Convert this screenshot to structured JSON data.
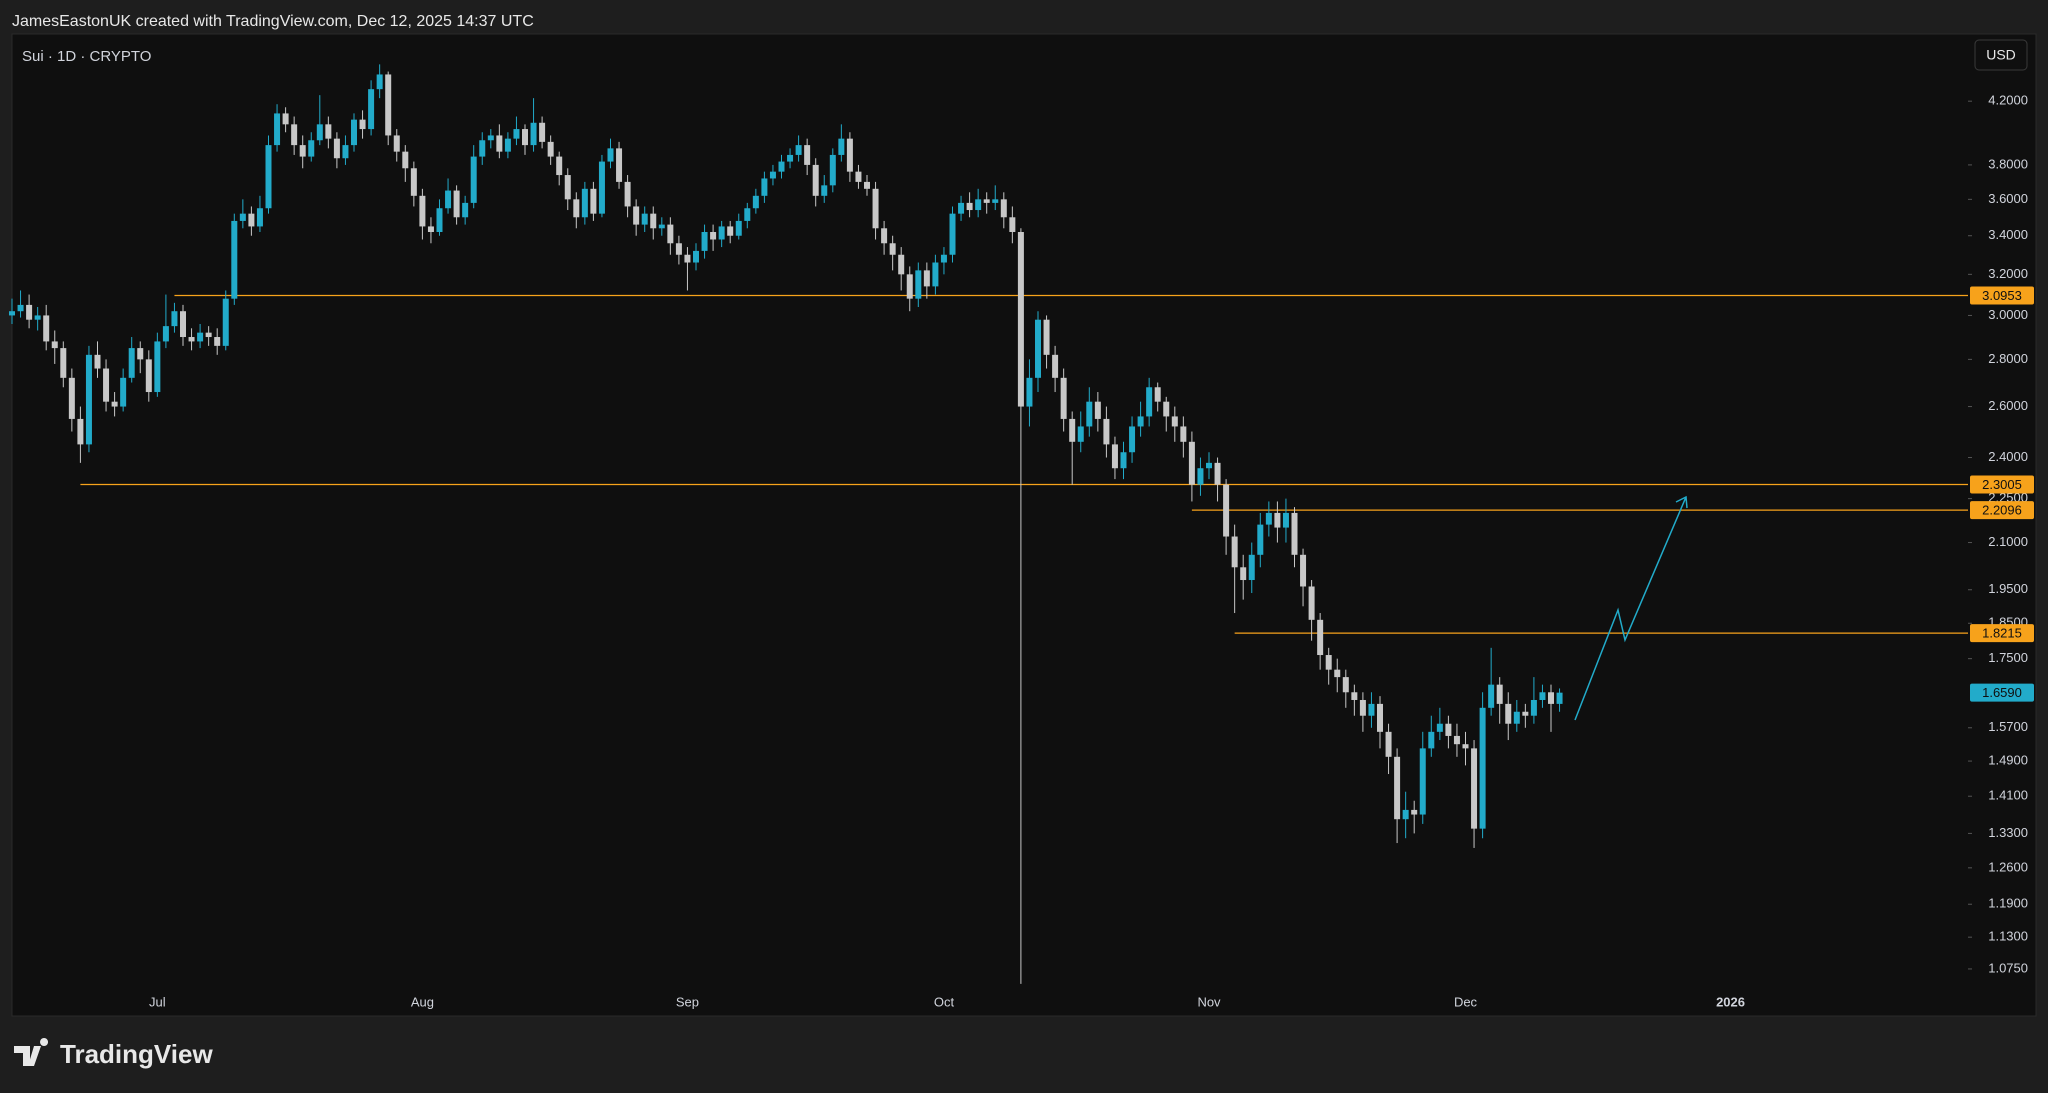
{
  "header": {
    "attribution": "JamesEastonUK created with TradingView.com, Dec 12, 2025 14:37 UTC"
  },
  "chart_data": {
    "type": "candlestick",
    "title": "Sui · 1D · CRYPTO",
    "currency": "USD",
    "log_scale": true,
    "up_color": "#22abca",
    "down_color": "#c8c8c8",
    "level_color": "#f7a21b",
    "ylim": [
      1.0,
      4.66
    ],
    "yticks": [
      {
        "value": 1.075,
        "label": "1.0750"
      },
      {
        "value": 1.13,
        "label": "1.1300"
      },
      {
        "value": 1.19,
        "label": "1.1900"
      },
      {
        "value": 1.26,
        "label": "1.2600"
      },
      {
        "value": 1.33,
        "label": "1.3300"
      },
      {
        "value": 1.41,
        "label": "1.4100"
      },
      {
        "value": 1.49,
        "label": "1.4900"
      },
      {
        "value": 1.57,
        "label": "1.5700"
      },
      {
        "value": 1.75,
        "label": "1.7500"
      },
      {
        "value": 1.85,
        "label": "1.8500"
      },
      {
        "value": 1.95,
        "label": "1.9500"
      },
      {
        "value": 2.1,
        "label": "2.1000"
      },
      {
        "value": 2.25,
        "label": "2.2500"
      },
      {
        "value": 2.4,
        "label": "2.4000"
      },
      {
        "value": 2.6,
        "label": "2.6000"
      },
      {
        "value": 2.8,
        "label": "2.8000"
      },
      {
        "value": 3,
        "label": "3.0000"
      },
      {
        "value": 3.2,
        "label": "3.2000"
      },
      {
        "value": 3.4,
        "label": "3.4000"
      },
      {
        "value": 3.6,
        "label": "3.6000"
      },
      {
        "value": 3.8,
        "label": "3.8000"
      },
      {
        "value": 4.2,
        "label": "4.2000"
      }
    ],
    "levels": [
      3.0953,
      2.3005,
      2.2096,
      1.8215
    ],
    "last_price": {
      "value": 1.659,
      "label": "1.6590"
    },
    "categories": [
      null,
      null,
      null,
      null,
      null,
      null,
      null,
      null,
      null,
      null,
      null,
      null,
      null,
      null,
      null,
      null,
      null,
      "Jul",
      null,
      null,
      null,
      null,
      null,
      null,
      null,
      null,
      null,
      null,
      null,
      null,
      null,
      null,
      null,
      null,
      null,
      null,
      null,
      null,
      null,
      null,
      null,
      null,
      null,
      null,
      null,
      null,
      null,
      null,
      "Aug",
      null,
      null,
      null,
      null,
      null,
      null,
      null,
      null,
      null,
      null,
      null,
      null,
      null,
      null,
      null,
      null,
      null,
      null,
      null,
      null,
      null,
      null,
      null,
      null,
      null,
      null,
      null,
      null,
      null,
      null,
      "Sep",
      null,
      null,
      null,
      null,
      null,
      null,
      null,
      null,
      null,
      null,
      null,
      null,
      null,
      null,
      null,
      null,
      null,
      null,
      null,
      null,
      null,
      null,
      null,
      null,
      null,
      null,
      null,
      null,
      null,
      "Oct",
      null,
      null,
      null,
      null,
      null,
      null,
      null,
      null,
      null,
      null,
      null,
      null,
      null,
      null,
      null,
      null,
      null,
      null,
      null,
      null,
      null,
      null,
      null,
      null,
      null,
      null,
      null,
      null,
      null,
      null,
      "Nov",
      null,
      null,
      null,
      null,
      null,
      null,
      null,
      null,
      null,
      null,
      null,
      null,
      null,
      null,
      null,
      null,
      null,
      null,
      null,
      null,
      null,
      null,
      null,
      null,
      null,
      null,
      null,
      null,
      null,
      "Dec",
      null,
      null,
      null,
      null,
      null,
      null,
      null,
      null,
      null,
      null,
      null,
      null,
      null,
      null,
      null,
      null,
      null,
      null,
      null,
      null,
      null,
      null,
      null,
      null,
      null,
      null,
      null,
      null,
      null,
      null,
      "2026"
    ],
    "open": [
      3.0,
      3.02,
      3.05,
      2.98,
      3.0,
      2.88,
      2.85,
      2.72,
      2.55,
      2.45,
      2.82,
      2.76,
      2.62,
      2.6,
      2.72,
      2.85,
      2.8,
      2.66,
      2.88,
      2.95,
      3.02,
      2.9,
      2.88,
      2.92,
      2.9,
      2.86,
      3.08,
      3.48,
      3.52,
      3.45,
      3.55,
      3.92,
      4.12,
      4.05,
      3.92,
      3.85,
      3.95,
      4.05,
      3.96,
      3.84,
      3.92,
      4.08,
      4.02,
      4.28,
      4.38,
      3.98,
      3.88,
      3.78,
      3.62,
      3.45,
      3.42,
      3.55,
      3.65,
      3.5,
      3.58,
      3.85,
      3.95,
      3.98,
      3.88,
      3.96,
      4.02,
      3.92,
      4.06,
      3.94,
      3.85,
      3.74,
      3.6,
      3.5,
      3.66,
      3.52,
      3.82,
      3.9,
      3.7,
      3.56,
      3.46,
      3.52,
      3.44,
      3.46,
      3.36,
      3.3,
      3.26,
      3.32,
      3.42,
      3.38,
      3.45,
      3.4,
      3.48,
      3.55,
      3.62,
      3.72,
      3.76,
      3.82,
      3.86,
      3.92,
      3.8,
      3.62,
      3.68,
      3.86,
      3.96,
      3.76,
      3.7,
      3.66,
      3.44,
      3.36,
      3.3,
      3.2,
      3.08,
      3.22,
      3.14,
      3.26,
      3.3,
      3.52,
      3.58,
      3.54,
      3.6,
      3.58,
      3.6,
      3.5,
      3.42,
      2.6,
      2.72,
      2.98,
      2.82,
      2.72,
      2.55,
      2.46,
      2.52,
      2.62,
      2.55,
      2.45,
      2.36,
      2.42,
      2.52,
      2.56,
      2.68,
      2.62,
      2.56,
      2.52,
      2.46,
      2.3,
      2.36,
      2.38,
      2.3,
      2.12,
      2.02,
      1.98,
      2.06,
      2.16,
      2.2,
      2.15,
      2.2,
      2.06,
      1.96,
      1.86,
      1.76,
      1.72,
      1.7,
      1.66,
      1.64,
      1.6,
      1.63,
      1.56,
      1.5,
      1.36,
      1.38,
      1.37,
      1.52,
      1.56,
      1.58,
      1.55,
      1.53,
      1.52,
      1.34,
      1.62,
      1.68,
      1.63,
      1.58,
      1.61,
      1.6,
      1.64,
      1.66,
      1.63,
      null,
      null,
      null,
      null,
      null,
      null,
      null,
      null,
      null,
      null,
      null,
      null,
      null,
      null,
      null,
      null,
      null,
      null,
      null,
      null
    ],
    "high": [
      3.08,
      3.12,
      3.1,
      3.04,
      3.05,
      2.93,
      2.88,
      2.76,
      2.6,
      2.86,
      2.88,
      2.8,
      2.66,
      2.76,
      2.9,
      2.88,
      2.84,
      2.92,
      3.1,
      3.06,
      3.05,
      2.94,
      2.96,
      2.95,
      2.94,
      3.12,
      3.52,
      3.6,
      3.56,
      3.62,
      3.98,
      4.18,
      4.16,
      4.1,
      3.98,
      4.0,
      4.24,
      4.1,
      4.0,
      3.98,
      4.12,
      4.14,
      4.34,
      4.45,
      4.4,
      4.02,
      3.92,
      3.82,
      3.66,
      3.5,
      3.6,
      3.72,
      3.68,
      3.62,
      3.92,
      4.0,
      4.02,
      4.05,
      4.0,
      4.1,
      4.05,
      4.22,
      4.1,
      3.98,
      3.88,
      3.78,
      3.64,
      3.7,
      3.7,
      3.86,
      3.96,
      3.94,
      3.74,
      3.6,
      3.56,
      3.56,
      3.5,
      3.5,
      3.4,
      3.34,
      3.36,
      3.46,
      3.46,
      3.48,
      3.48,
      3.52,
      3.58,
      3.66,
      3.76,
      3.8,
      3.86,
      3.9,
      3.98,
      3.96,
      3.84,
      3.74,
      3.9,
      4.05,
      4.0,
      3.8,
      3.74,
      3.7,
      3.48,
      3.4,
      3.34,
      3.24,
      3.26,
      3.26,
      3.3,
      3.34,
      3.56,
      3.62,
      3.64,
      3.66,
      3.64,
      3.68,
      3.64,
      3.56,
      3.44,
      2.8,
      3.02,
      3.0,
      2.86,
      2.76,
      2.58,
      2.58,
      2.68,
      2.66,
      2.6,
      2.48,
      2.46,
      2.56,
      2.62,
      2.72,
      2.7,
      2.64,
      2.6,
      2.56,
      2.5,
      2.4,
      2.42,
      2.4,
      2.32,
      2.16,
      2.06,
      2.1,
      2.2,
      2.24,
      2.24,
      2.25,
      2.22,
      2.08,
      1.98,
      1.88,
      1.78,
      1.75,
      1.72,
      1.68,
      1.66,
      1.66,
      1.65,
      1.58,
      1.52,
      1.42,
      1.4,
      1.56,
      1.6,
      1.62,
      1.6,
      1.58,
      1.56,
      1.54,
      1.66,
      1.78,
      1.7,
      1.66,
      1.64,
      1.63,
      1.7,
      1.68,
      1.68,
      1.67,
      null,
      null,
      null,
      null,
      null,
      null,
      null,
      null,
      null,
      null,
      null,
      null,
      null,
      null,
      null,
      null,
      null,
      null,
      null,
      null
    ],
    "low": [
      2.96,
      2.99,
      2.94,
      2.93,
      2.84,
      2.78,
      2.68,
      2.5,
      2.38,
      2.42,
      2.72,
      2.58,
      2.56,
      2.58,
      2.7,
      2.74,
      2.62,
      2.64,
      2.85,
      2.92,
      2.86,
      2.84,
      2.85,
      2.86,
      2.82,
      2.84,
      3.05,
      3.44,
      3.4,
      3.42,
      3.52,
      3.88,
      4.0,
      3.86,
      3.78,
      3.82,
      3.92,
      3.9,
      3.78,
      3.8,
      3.88,
      3.96,
      3.98,
      4.22,
      3.92,
      3.82,
      3.7,
      3.56,
      3.38,
      3.36,
      3.4,
      3.52,
      3.46,
      3.46,
      3.55,
      3.8,
      3.9,
      3.84,
      3.84,
      3.92,
      3.86,
      3.88,
      3.9,
      3.8,
      3.68,
      3.54,
      3.44,
      3.46,
      3.48,
      3.5,
      3.78,
      3.66,
      3.5,
      3.4,
      3.42,
      3.38,
      3.4,
      3.3,
      3.25,
      3.12,
      3.22,
      3.28,
      3.32,
      3.34,
      3.36,
      3.38,
      3.44,
      3.52,
      3.58,
      3.68,
      3.72,
      3.78,
      3.82,
      3.74,
      3.56,
      3.58,
      3.64,
      3.82,
      3.7,
      3.66,
      3.62,
      3.38,
      3.3,
      3.22,
      3.12,
      3.02,
      3.04,
      3.08,
      3.1,
      3.2,
      3.26,
      3.48,
      3.5,
      3.5,
      3.52,
      3.54,
      3.44,
      3.36,
      1.05,
      2.52,
      2.66,
      2.76,
      2.66,
      2.5,
      2.3,
      2.42,
      2.48,
      2.5,
      2.4,
      2.32,
      2.32,
      2.38,
      2.48,
      2.52,
      2.58,
      2.5,
      2.46,
      2.4,
      2.24,
      2.26,
      2.32,
      2.24,
      2.06,
      1.88,
      1.92,
      1.94,
      2.02,
      2.12,
      2.1,
      2.1,
      2.02,
      1.9,
      1.8,
      1.72,
      1.68,
      1.66,
      1.62,
      1.6,
      1.56,
      1.57,
      1.52,
      1.46,
      1.31,
      1.32,
      1.33,
      1.35,
      1.5,
      1.54,
      1.52,
      1.5,
      1.48,
      1.3,
      1.32,
      1.6,
      1.58,
      1.54,
      1.56,
      1.57,
      1.58,
      1.62,
      1.56,
      1.61,
      null,
      null,
      null,
      null,
      null,
      null,
      null,
      null,
      null,
      null,
      null,
      null,
      null,
      null,
      null,
      null,
      null,
      null,
      null,
      null
    ],
    "close": [
      3.02,
      3.05,
      2.98,
      3.0,
      2.88,
      2.85,
      2.72,
      2.55,
      2.45,
      2.82,
      2.76,
      2.62,
      2.6,
      2.72,
      2.85,
      2.8,
      2.66,
      2.88,
      2.95,
      3.02,
      2.9,
      2.88,
      2.92,
      2.9,
      2.86,
      3.08,
      3.48,
      3.52,
      3.45,
      3.55,
      3.92,
      4.12,
      4.05,
      3.92,
      3.85,
      3.95,
      4.05,
      3.96,
      3.84,
      3.92,
      4.08,
      4.02,
      4.28,
      4.38,
      3.98,
      3.88,
      3.78,
      3.62,
      3.45,
      3.42,
      3.55,
      3.65,
      3.5,
      3.58,
      3.85,
      3.95,
      3.98,
      3.88,
      3.96,
      4.02,
      3.92,
      4.06,
      3.94,
      3.85,
      3.74,
      3.6,
      3.5,
      3.66,
      3.52,
      3.82,
      3.9,
      3.7,
      3.56,
      3.46,
      3.52,
      3.44,
      3.46,
      3.36,
      3.3,
      3.26,
      3.32,
      3.42,
      3.38,
      3.45,
      3.4,
      3.48,
      3.55,
      3.62,
      3.72,
      3.76,
      3.82,
      3.86,
      3.92,
      3.8,
      3.62,
      3.68,
      3.86,
      3.96,
      3.76,
      3.7,
      3.66,
      3.44,
      3.36,
      3.3,
      3.2,
      3.08,
      3.22,
      3.14,
      3.26,
      3.3,
      3.52,
      3.58,
      3.54,
      3.6,
      3.58,
      3.6,
      3.5,
      3.42,
      2.6,
      2.72,
      2.98,
      2.82,
      2.72,
      2.55,
      2.46,
      2.52,
      2.62,
      2.55,
      2.45,
      2.36,
      2.42,
      2.52,
      2.56,
      2.68,
      2.62,
      2.56,
      2.52,
      2.46,
      2.3,
      2.36,
      2.38,
      2.3,
      2.12,
      2.02,
      1.98,
      2.06,
      2.16,
      2.2,
      2.15,
      2.2,
      2.06,
      1.96,
      1.86,
      1.76,
      1.72,
      1.7,
      1.66,
      1.64,
      1.6,
      1.63,
      1.56,
      1.5,
      1.36,
      1.38,
      1.37,
      1.52,
      1.56,
      1.58,
      1.55,
      1.53,
      1.52,
      1.34,
      1.62,
      1.68,
      1.63,
      1.58,
      1.61,
      1.6,
      1.64,
      1.66,
      1.63,
      1.659,
      null,
      null,
      null,
      null,
      null,
      null,
      null,
      null,
      null,
      null,
      null,
      null,
      null,
      null,
      null,
      null,
      null,
      null,
      null,
      null
    ]
  },
  "footer": {
    "brand": "TradingView"
  }
}
